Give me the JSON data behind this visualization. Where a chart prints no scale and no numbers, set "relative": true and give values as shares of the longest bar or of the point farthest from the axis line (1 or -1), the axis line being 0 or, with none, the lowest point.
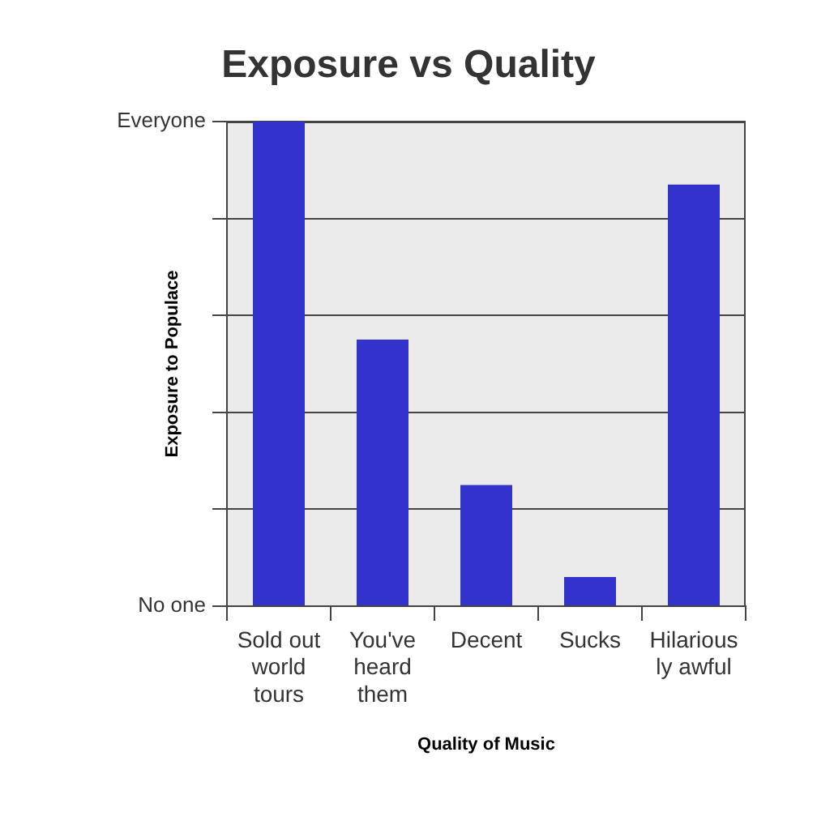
{
  "chart_data": {
    "type": "bar",
    "title": "Exposure vs Quality",
    "xlabel": "Quality of Music",
    "ylabel": "Exposure to Populace",
    "categories": [
      "Sold out world tours",
      "You've heard them",
      "Decent",
      "Sucks",
      "Hilarious ly awful"
    ],
    "values": [
      1,
      0.55,
      0.25,
      0.06,
      0.87
    ],
    "color": "#3333cc",
    "relative": true,
    "annotations": [
      "Everyone",
      "No one"
    ],
    "grid": "y"
  }
}
